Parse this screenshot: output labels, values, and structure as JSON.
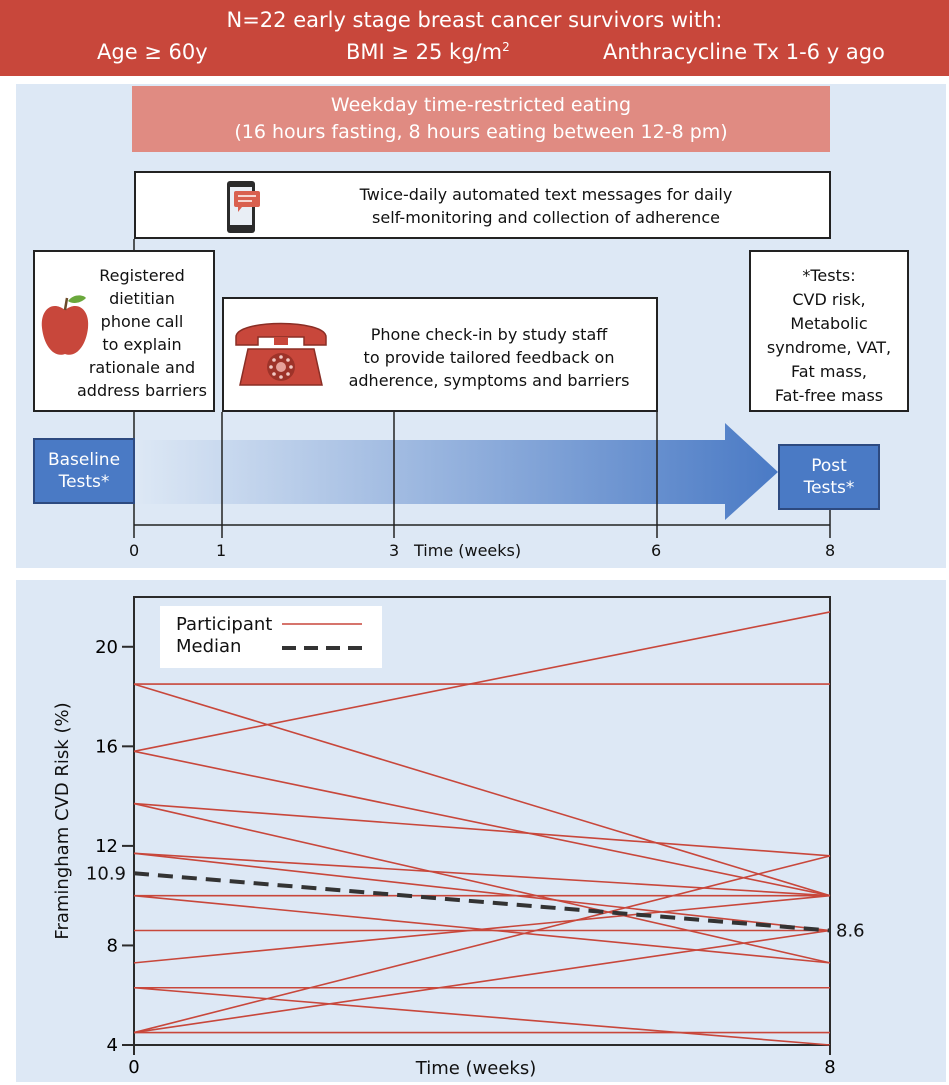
{
  "banner": {
    "line1": "N=22 early stage breast cancer survivors with:",
    "age": "Age ≥ 60y",
    "bmi_prefix": "BMI ≥ 25 kg/m",
    "bmi_sup": "2",
    "tx": "Anthracycline Tx 1-6 y ago"
  },
  "intervention": {
    "line1": "Weekday time-restricted eating",
    "line2": "(16 hours fasting, 8 hours eating between 12-8 pm)"
  },
  "sms": {
    "line1": "Twice-daily automated text messages for daily",
    "line2": "self-monitoring and collection of adherence"
  },
  "dietitian": {
    "lines": [
      "Registered",
      "dietitian",
      "phone call",
      "to explain",
      "rationale and",
      "address barriers"
    ]
  },
  "checkin": {
    "lines": [
      "Phone check-in by study staff",
      "to provide tailored feedback on",
      "adherence, symptoms and barriers"
    ]
  },
  "tests": {
    "lines": [
      "*Tests:",
      "CVD risk,",
      "Metabolic",
      "syndrome, VAT,",
      "Fat mass,",
      "Fat-free mass"
    ]
  },
  "baseline": {
    "line1": "Baseline",
    "line2": "Tests*"
  },
  "post": {
    "line1": "Post",
    "line2": "Tests*"
  },
  "timeline": {
    "ticks": [
      "0",
      "1",
      "3",
      "6",
      "8"
    ],
    "label": "Time (weeks)"
  },
  "colors": {
    "banner": "#c8473b",
    "panel": "#dde8f5",
    "participant": "#c8473b",
    "median": "#333333",
    "arrow": "#4a7ac5"
  },
  "chart_data": {
    "type": "line",
    "title": "",
    "xlabel": "Time (weeks)",
    "ylabel": "Framingham CVD Risk (%)",
    "xlim": [
      0,
      8
    ],
    "ylim": [
      4,
      22
    ],
    "x_ticks": [
      "0",
      "8"
    ],
    "y_ticks": [
      "4",
      "8",
      "12",
      "16",
      "20"
    ],
    "legend": [
      "Participant",
      "Median"
    ],
    "legend_position": "top-left",
    "x": [
      0,
      8
    ],
    "participants": [
      [
        15.8,
        21.4
      ],
      [
        18.5,
        18.5
      ],
      [
        18.5,
        10.0
      ],
      [
        15.8,
        10.0
      ],
      [
        13.7,
        11.6
      ],
      [
        13.7,
        7.3
      ],
      [
        11.7,
        10.0
      ],
      [
        11.7,
        8.6
      ],
      [
        10.0,
        10.0
      ],
      [
        10.0,
        7.3
      ],
      [
        8.6,
        8.6
      ],
      [
        7.3,
        10.0
      ],
      [
        6.3,
        6.3
      ],
      [
        6.3,
        4.0
      ],
      [
        4.5,
        8.6
      ],
      [
        4.5,
        4.5
      ],
      [
        4.5,
        11.6
      ]
    ],
    "median": [
      10.9,
      8.6
    ],
    "median_start_label": "10.9",
    "median_end_label": "8.6"
  }
}
